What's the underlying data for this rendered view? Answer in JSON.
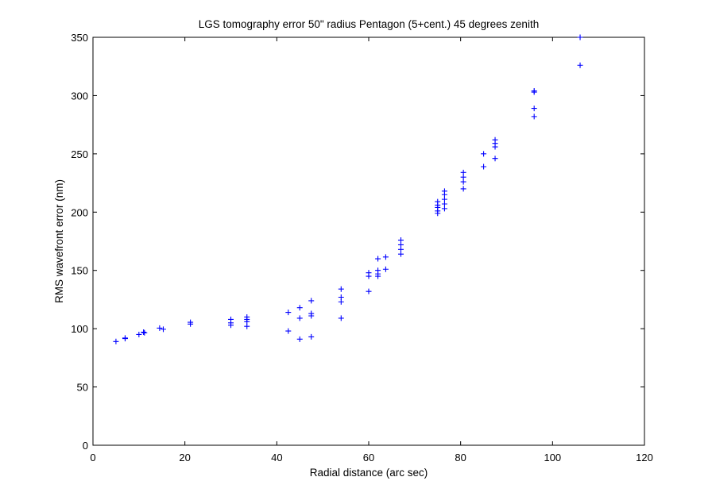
{
  "chart_data": {
    "type": "scatter",
    "title": "LGS tomography error 50\" radius Pentagon (5+cent.) 45 degrees zenith",
    "xlabel": "Radial distance (arc sec)",
    "ylabel": "RMS wavefront error (nm)",
    "xlim": [
      0,
      120
    ],
    "ylim": [
      0,
      350
    ],
    "xticks": [
      0,
      20,
      40,
      60,
      80,
      100,
      120
    ],
    "yticks": [
      0,
      50,
      100,
      150,
      200,
      250,
      300,
      350
    ],
    "grid": false,
    "marker": "+",
    "color": "#0000ff",
    "series": [
      {
        "points": [
          [
            5,
            89
          ],
          [
            7,
            92
          ],
          [
            7,
            91.5
          ],
          [
            10,
            95
          ],
          [
            11,
            97
          ],
          [
            11.2,
            96.5
          ],
          [
            14.5,
            100.5
          ],
          [
            15.3,
            99.5
          ],
          [
            21.2,
            104
          ],
          [
            21.2,
            105.5
          ],
          [
            30,
            103
          ],
          [
            30,
            105
          ],
          [
            30,
            108
          ],
          [
            33.5,
            102
          ],
          [
            33.5,
            106
          ],
          [
            33.5,
            110
          ],
          [
            33.5,
            108
          ],
          [
            42.5,
            98
          ],
          [
            42.5,
            114
          ],
          [
            45,
            91
          ],
          [
            45,
            109
          ],
          [
            45,
            118
          ],
          [
            47.5,
            93
          ],
          [
            47.5,
            111
          ],
          [
            47.5,
            113
          ],
          [
            47.5,
            124
          ],
          [
            54,
            109
          ],
          [
            54,
            123
          ],
          [
            54,
            127
          ],
          [
            54,
            134
          ],
          [
            60,
            132
          ],
          [
            60,
            145
          ],
          [
            60,
            148
          ],
          [
            62,
            145
          ],
          [
            62,
            147
          ],
          [
            62,
            150
          ],
          [
            62,
            160
          ],
          [
            63.7,
            151
          ],
          [
            63.7,
            161.5
          ],
          [
            67,
            164
          ],
          [
            67,
            168
          ],
          [
            67,
            172
          ],
          [
            67,
            176
          ],
          [
            75,
            199
          ],
          [
            75,
            201
          ],
          [
            75,
            204
          ],
          [
            75,
            206
          ],
          [
            75,
            209
          ],
          [
            76.5,
            203
          ],
          [
            76.5,
            207
          ],
          [
            76.5,
            211
          ],
          [
            76.5,
            215
          ],
          [
            76.5,
            218
          ],
          [
            80.6,
            220
          ],
          [
            80.6,
            226
          ],
          [
            80.6,
            230
          ],
          [
            80.6,
            234
          ],
          [
            85,
            239
          ],
          [
            85,
            250
          ],
          [
            87.5,
            246
          ],
          [
            87.5,
            256
          ],
          [
            87.5,
            259
          ],
          [
            87.5,
            262
          ],
          [
            96,
            282
          ],
          [
            96,
            289
          ],
          [
            96,
            303
          ],
          [
            96,
            304
          ],
          [
            106,
            326
          ],
          [
            106,
            350
          ]
        ]
      }
    ]
  }
}
